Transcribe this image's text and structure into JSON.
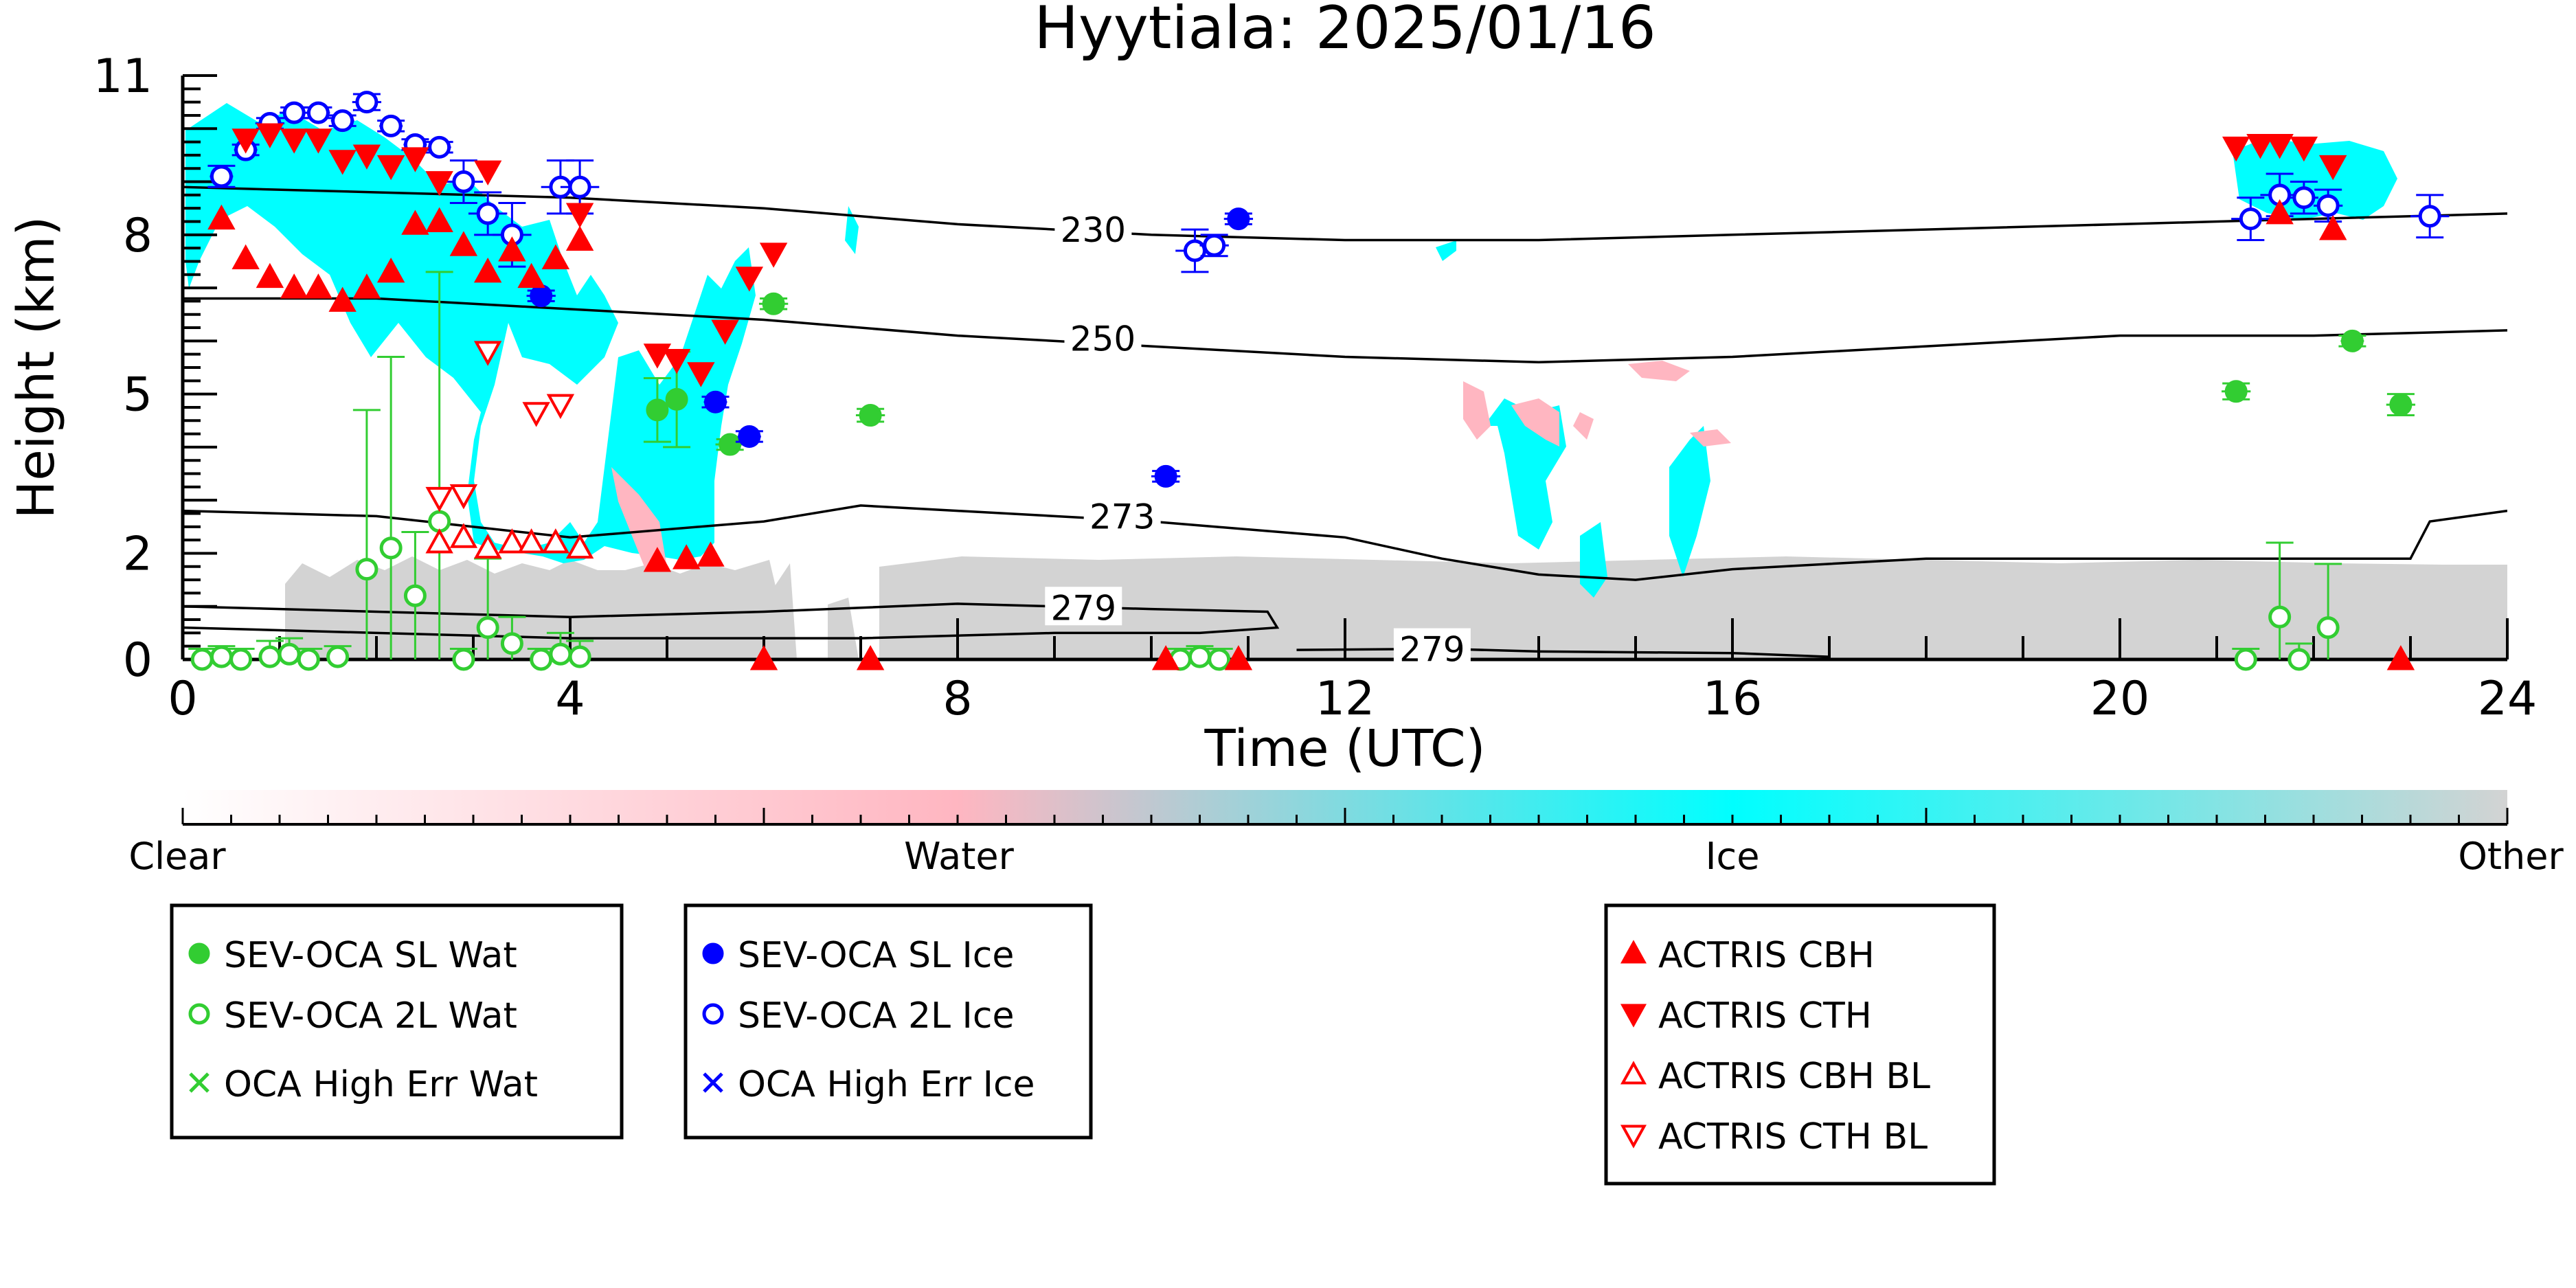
{
  "chart_data": {
    "type": "scatter",
    "title": "Hyytiala: 2025/01/16",
    "xlabel": "Time (UTC)",
    "ylabel": "Height (km)",
    "xlim": [
      0,
      24
    ],
    "ylim": [
      0,
      11
    ],
    "xticks": [
      0,
      4,
      8,
      12,
      16,
      20,
      24
    ],
    "yticks": [
      0,
      2,
      5,
      8,
      11
    ],
    "ytick_labels": [
      "0",
      "2",
      "5",
      "8",
      "11"
    ],
    "grid": false,
    "colorbar": {
      "labels": [
        "Clear",
        "Water",
        "Ice",
        "Other"
      ],
      "colors": [
        "#ffffff",
        "#ffb6c1",
        "#00ffff",
        "#d3d3d3"
      ]
    },
    "contours": [
      {
        "label": "230",
        "points": [
          [
            0,
            8.9
          ],
          [
            2,
            8.8
          ],
          [
            4,
            8.7
          ],
          [
            6,
            8.5
          ],
          [
            8,
            8.2
          ],
          [
            10,
            8.0
          ],
          [
            12,
            7.9
          ],
          [
            14,
            7.9
          ],
          [
            16,
            8.0
          ],
          [
            18,
            8.1
          ],
          [
            20,
            8.2
          ],
          [
            22,
            8.3
          ],
          [
            24,
            8.4
          ]
        ],
        "label_at": [
          9.4,
          8.1
        ]
      },
      {
        "label": "250",
        "points": [
          [
            0,
            6.8
          ],
          [
            2,
            6.8
          ],
          [
            4,
            6.6
          ],
          [
            6,
            6.4
          ],
          [
            8,
            6.1
          ],
          [
            10,
            5.9
          ],
          [
            12,
            5.7
          ],
          [
            14,
            5.6
          ],
          [
            16,
            5.7
          ],
          [
            18,
            5.9
          ],
          [
            20,
            6.1
          ],
          [
            22,
            6.1
          ],
          [
            24,
            6.2
          ]
        ],
        "label_at": [
          9.5,
          6.05
        ]
      },
      {
        "label": "273",
        "points": [
          [
            0,
            2.8
          ],
          [
            2,
            2.7
          ],
          [
            4,
            2.3
          ],
          [
            6,
            2.6
          ],
          [
            7,
            2.9
          ],
          [
            8,
            2.8
          ],
          [
            10,
            2.6
          ],
          [
            12,
            2.3
          ],
          [
            13,
            1.9
          ],
          [
            14,
            1.6
          ],
          [
            15,
            1.5
          ],
          [
            16,
            1.7
          ],
          [
            18,
            1.9
          ],
          [
            20,
            1.9
          ],
          [
            22,
            1.9
          ],
          [
            23,
            1.9
          ],
          [
            23.2,
            2.6
          ],
          [
            24,
            2.8
          ]
        ],
        "label_at": [
          9.7,
          2.7
        ]
      },
      {
        "label": "279",
        "points": [
          [
            0,
            1.0
          ],
          [
            2,
            0.9
          ],
          [
            4,
            0.8
          ],
          [
            6,
            0.9
          ],
          [
            8,
            1.05
          ],
          [
            10,
            0.95
          ],
          [
            11.2,
            0.9
          ],
          [
            11.3,
            0.6
          ],
          [
            10.5,
            0.5
          ],
          [
            9,
            0.5
          ],
          [
            7,
            0.4
          ],
          [
            6,
            0.4
          ],
          [
            4,
            0.4
          ],
          [
            2,
            0.5
          ],
          [
            0,
            0.6
          ]
        ],
        "label_at": [
          9.3,
          0.98
        ]
      },
      {
        "label": "279",
        "points": [
          [
            11.5,
            0.18
          ],
          [
            13,
            0.2
          ],
          [
            14,
            0.15
          ],
          [
            16,
            0.12
          ],
          [
            17,
            0.05
          ]
        ],
        "label_at": [
          12.9,
          0.2
        ]
      }
    ],
    "series": [
      {
        "name": "SEV-OCA SL Wat",
        "color": "#32cd32",
        "marker": "circle",
        "fill": true,
        "x": [
          4.9,
          5.1,
          5.65,
          6.1,
          7.1,
          21.2,
          22.4,
          22.9
        ],
        "y": [
          4.7,
          4.9,
          4.05,
          6.7,
          4.6,
          5.05,
          6.0,
          4.8
        ],
        "xerr": [
          0.1,
          0.1,
          0.15,
          0.15,
          0.15,
          0.15,
          0.12,
          0.15
        ],
        "yerr": [
          0.6,
          0.9,
          0.1,
          0.1,
          0.12,
          0.15,
          0.1,
          0.2
        ]
      },
      {
        "name": "SEV-OCA 2L Wat",
        "color": "#32cd32",
        "marker": "circle",
        "fill": false,
        "x": [
          0.2,
          0.4,
          0.6,
          0.9,
          1.1,
          1.3,
          1.6,
          1.9,
          2.15,
          2.4,
          2.65,
          2.9,
          3.15,
          3.4,
          3.7,
          3.9,
          4.1,
          10.3,
          10.5,
          10.7,
          21.3,
          21.65,
          21.85,
          22.15
        ],
        "y": [
          0.0,
          0.05,
          0.0,
          0.05,
          0.1,
          0.0,
          0.05,
          1.7,
          2.1,
          1.2,
          2.6,
          0.0,
          0.6,
          0.3,
          0.0,
          0.1,
          0.05,
          0.0,
          0.05,
          0.0,
          0.0,
          0.8,
          0.0,
          0.6
        ],
        "yerr": [
          0.2,
          0.2,
          0.2,
          0.3,
          0.3,
          0.2,
          0.2,
          3.0,
          3.6,
          1.2,
          4.7,
          0.2,
          1.3,
          0.5,
          0.2,
          0.4,
          0.3,
          0.2,
          0.2,
          0.2,
          0.2,
          1.4,
          0.3,
          1.2
        ]
      },
      {
        "name": "OCA High Err Wat",
        "color": "#32cd32",
        "marker": "x",
        "fill": false,
        "x": [],
        "y": []
      },
      {
        "name": "SEV-OCA SL Ice",
        "color": "#0000ff",
        "marker": "circle",
        "fill": true,
        "x": [
          3.7,
          5.5,
          5.85,
          10.15,
          10.9
        ],
        "y": [
          6.85,
          4.85,
          4.2,
          3.45,
          8.3
        ],
        "xerr": [
          0.15,
          0.12,
          0.12,
          0.15,
          0.15
        ],
        "yerr": [
          0.1,
          0.1,
          0.1,
          0.1,
          0.1
        ]
      },
      {
        "name": "SEV-OCA 2L Ice",
        "color": "#0000ff",
        "marker": "circle",
        "fill": false,
        "x": [
          0.4,
          0.65,
          0.9,
          1.15,
          1.4,
          1.65,
          1.9,
          2.15,
          2.4,
          2.65,
          2.9,
          3.15,
          3.4,
          3.9,
          4.1,
          10.45,
          10.65,
          21.35,
          21.65,
          21.9,
          22.15,
          23.2
        ],
        "y": [
          9.1,
          9.6,
          10.1,
          10.3,
          10.3,
          10.15,
          10.5,
          10.05,
          9.7,
          9.65,
          9.0,
          8.4,
          8.0,
          8.9,
          8.9,
          7.7,
          7.8,
          8.3,
          8.75,
          8.7,
          8.55,
          8.35
        ],
        "xerr": [
          0.12,
          0.12,
          0.15,
          0.15,
          0.12,
          0.12,
          0.15,
          0.12,
          0.12,
          0.12,
          0.2,
          0.2,
          0.2,
          0.2,
          0.2,
          0.2,
          0.15,
          0.2,
          0.2,
          0.15,
          0.15,
          0.2
        ],
        "yerr": [
          0.2,
          0.1,
          0.1,
          0.1,
          0.1,
          0.1,
          0.15,
          0.1,
          0.1,
          0.1,
          0.4,
          0.4,
          0.6,
          0.5,
          0.5,
          0.4,
          0.2,
          0.4,
          0.4,
          0.3,
          0.3,
          0.4
        ]
      },
      {
        "name": "OCA High Err Ice",
        "color": "#0000ff",
        "marker": "x",
        "fill": false,
        "x": [],
        "y": []
      },
      {
        "name": "ACTRIS CBH",
        "color": "#ff0000",
        "marker": "triangle-up",
        "fill": true,
        "x": [
          0.4,
          0.65,
          0.9,
          1.15,
          1.4,
          1.65,
          1.9,
          2.15,
          2.4,
          2.65,
          2.9,
          3.15,
          3.4,
          3.6,
          3.85,
          4.1,
          4.9,
          5.2,
          5.45,
          6.0,
          7.1,
          10.15,
          10.9,
          21.65,
          22.2,
          22.9
        ],
        "y": [
          8.3,
          7.55,
          7.2,
          7.0,
          7.0,
          6.75,
          7.0,
          7.3,
          8.2,
          8.25,
          7.8,
          7.3,
          7.7,
          7.2,
          7.55,
          7.9,
          1.85,
          1.9,
          1.95,
          0.0,
          0.0,
          0.0,
          0.0,
          8.4,
          8.1,
          0.0
        ]
      },
      {
        "name": "ACTRIS CTH",
        "color": "#ff0000",
        "marker": "triangle-down",
        "fill": true,
        "x": [
          0.65,
          0.9,
          1.15,
          1.4,
          1.65,
          1.9,
          2.15,
          2.4,
          2.65,
          3.15,
          4.1,
          4.9,
          5.1,
          5.35,
          5.6,
          5.85,
          6.1,
          21.2,
          21.45,
          21.65,
          21.9,
          22.2
        ],
        "y": [
          9.8,
          9.9,
          9.8,
          9.8,
          9.4,
          9.5,
          9.3,
          9.45,
          9.0,
          9.2,
          8.4,
          5.75,
          5.65,
          5.4,
          6.2,
          7.2,
          7.65,
          9.65,
          9.7,
          9.7,
          9.65,
          9.3
        ]
      },
      {
        "name": "ACTRIS CBH BL",
        "color": "#ff0000",
        "marker": "triangle-up",
        "fill": false,
        "x": [
          2.65,
          2.9,
          3.15,
          3.4,
          3.6,
          3.85,
          4.1
        ],
        "y": [
          2.2,
          2.3,
          2.1,
          2.2,
          2.2,
          2.2,
          2.1
        ]
      },
      {
        "name": "ACTRIS CTH BL",
        "color": "#ff0000",
        "marker": "triangle-down",
        "fill": false,
        "x": [
          2.65,
          2.9,
          3.15,
          3.65,
          3.9
        ],
        "y": [
          3.05,
          3.1,
          5.8,
          4.65,
          4.8
        ]
      }
    ],
    "legend_groups": [
      [
        "SEV-OCA SL Wat",
        "SEV-OCA 2L Wat",
        "OCA High Err Wat"
      ],
      [
        "SEV-OCA SL Ice",
        "SEV-OCA 2L Ice",
        "OCA High Err Ice"
      ],
      [
        "ACTRIS CBH",
        "ACTRIS CTH",
        "ACTRIS CBH BL",
        "ACTRIS CTH BL"
      ]
    ]
  }
}
